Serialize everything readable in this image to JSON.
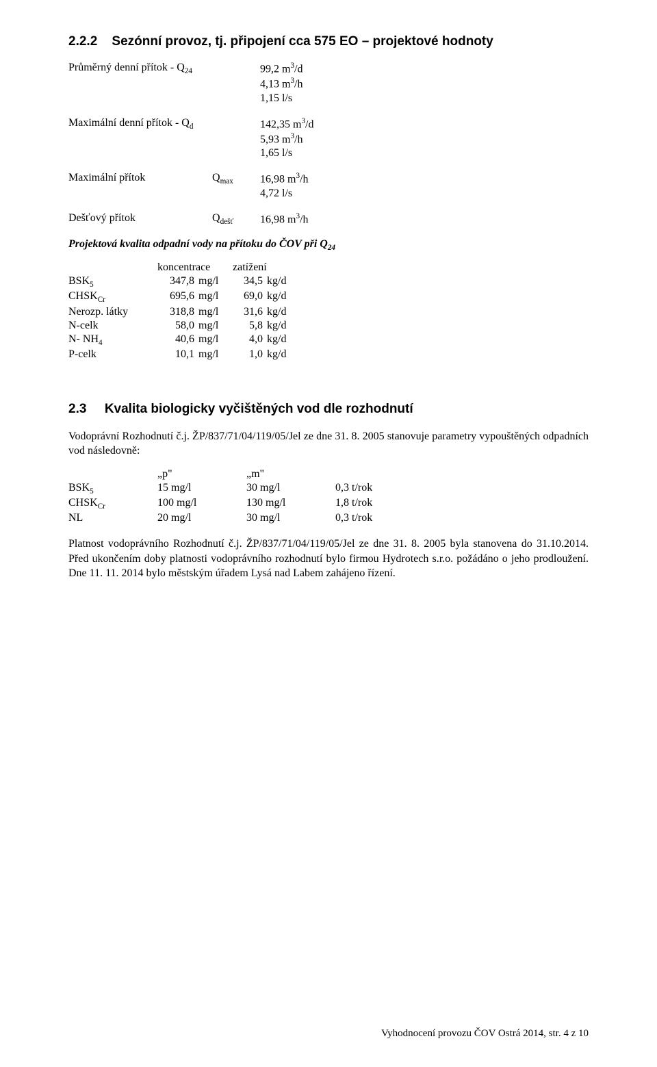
{
  "section": {
    "number": "2.2.2",
    "title": "Sezónní provoz, tj. připojení cca 575 EO – projektové hodnoty"
  },
  "inflow": {
    "q24_label": "Průměrný denní přítok - Q",
    "q24_sub": "24",
    "q24_v1": "99,2 m",
    "q24_v1_sup": "3",
    "q24_v1_unit": "/d",
    "q24_v2": "4,13 m",
    "q24_v2_sup": "3",
    "q24_v2_unit": "/h",
    "q24_v3": "1,15 l/s",
    "qd_label": "Maximální denní přítok - Q",
    "qd_sub": "d",
    "qd_v1": "142,35 m",
    "qd_v1_sup": "3",
    "qd_v1_unit": "/d",
    "qd_v2": "5,93 m",
    "qd_v2_sup": "3",
    "qd_v2_unit": "/h",
    "qd_v3": "1,65 l/s",
    "qmax_label": "Maximální přítok",
    "qmax_sym": "Q",
    "qmax_sym_sub": "max",
    "qmax_v1": "16,98 m",
    "qmax_v1_sup": "3",
    "qmax_v1_unit": "/h",
    "qmax_v2": "4,72 l/s",
    "qdest_label": "Dešťový přítok",
    "qdest_sym": "Q",
    "qdest_sym_sub": "dešť",
    "qdest_v1": "16,98 m",
    "qdest_v1_sup": "3",
    "qdest_v1_unit": "/h"
  },
  "ital_heading": "Projektová kvalita odpadní vody na přítoku do ČOV při Q",
  "ital_heading_sub": "24",
  "konc": {
    "head_c2": "koncentrace",
    "head_c4": "zatížení",
    "rows": [
      {
        "name": "BSK",
        "name_sub": "5",
        "c": "347,8",
        "cu": "mg/l",
        "z": "34,5",
        "zu": "kg/d"
      },
      {
        "name": "CHSK",
        "name_sub": "Cr",
        "c": "695,6",
        "cu": "mg/l",
        "z": "69,0",
        "zu": "kg/d"
      },
      {
        "name": "Nerozp. látky",
        "name_sub": "",
        "c": "318,8",
        "cu": "mg/l",
        "z": "31,6",
        "zu": "kg/d"
      },
      {
        "name": "N-celk",
        "name_sub": "",
        "c": "58,0",
        "cu": "mg/l",
        "z": "5,8",
        "zu": "kg/d"
      },
      {
        "name": "N- NH",
        "name_sub": "4",
        "c": "40,6",
        "cu": "mg/l",
        "z": "4,0",
        "zu": "kg/d"
      },
      {
        "name": "P-celk",
        "name_sub": "",
        "c": "10,1",
        "cu": "mg/l",
        "z": "1,0",
        "zu": "kg/d"
      }
    ]
  },
  "sub23": {
    "number": "2.3",
    "title": "Kvalita biologicky vyčištěných vod dle rozhodnutí",
    "para1": "Vodoprávní Rozhodnutí č.j. ŽP/837/71/04/119/05/Jel ze dne 31. 8. 2005 stanovuje parametry vypouštěných odpadních vod následovně:"
  },
  "limits": {
    "head_p": "„p\"",
    "head_m": "„m\"",
    "rows": [
      {
        "name": "BSK",
        "name_sub": "5",
        "p": "15 mg/l",
        "m": "30 mg/l",
        "t": "0,3 t/rok"
      },
      {
        "name": "CHSK",
        "name_sub": "Cr",
        "p": "100 mg/l",
        "m": "130 mg/l",
        "t": "1,8 t/rok"
      },
      {
        "name": "NL",
        "name_sub": "",
        "p": "20 mg/l",
        "m": "30 mg/l",
        "t": "0,3 t/rok"
      }
    ]
  },
  "para_validity": "Platnost vodoprávního Rozhodnutí č.j. ŽP/837/71/04/119/05/Jel ze dne 31. 8. 2005 byla stanovena do 31.10.2014. Před ukončením doby platnosti vodoprávního rozhodnutí bylo firmou Hydrotech s.r.o. požádáno o jeho prodloužení. Dne 11. 11. 2014 bylo městským úřadem Lysá nad Labem zahájeno řízení.",
  "footer": "Vyhodnocení provozu ČOV Ostrá 2014, str. 4 z 10"
}
